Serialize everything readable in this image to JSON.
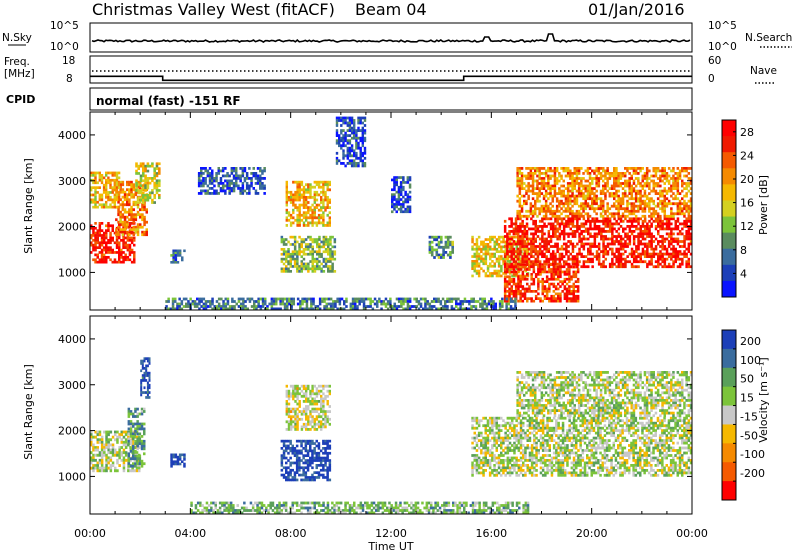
{
  "header": {
    "title": "Christmas Valley West (fitACF)",
    "beam": "Beam 04",
    "date": "01/Jan/2016"
  },
  "strip": {
    "nsky_label": "N.Sky",
    "nsky_ticks": [
      "10^5",
      "10^0"
    ],
    "nsearch_label": "N.Search",
    "nsearch_ticks": [
      "10^5",
      "10^0"
    ],
    "freq_label_1": "Freq.",
    "freq_label_2": "[MHz]",
    "freq_ticks": [
      "18",
      "8"
    ],
    "nave_label": "Nave",
    "nave_ticks": [
      "60",
      "0"
    ],
    "cpid_label": "CPID",
    "cpid_text": "normal (fast) -151 RF",
    "freq_steps": [
      {
        "from_hour": 0,
        "to_hour": 2.9,
        "mhz": 10.5
      },
      {
        "from_hour": 2.9,
        "to_hour": 14.9,
        "mhz": 9.0
      },
      {
        "from_hour": 14.9,
        "to_hour": 24,
        "mhz": 10.5
      }
    ]
  },
  "chart_data": [
    {
      "type": "heatmap",
      "name": "Power",
      "ylabel": "Slant Range [km]",
      "xlabel": "Time UT",
      "xlim_hours": [
        0,
        24
      ],
      "ylim_km": [
        180,
        4500
      ],
      "x_ticks": [
        "00:00",
        "04:00",
        "08:00",
        "12:00",
        "16:00",
        "20:00",
        "00:00"
      ],
      "y_ticks": [
        1000,
        2000,
        3000,
        4000
      ],
      "colorbar": {
        "label": "Power [dB]",
        "range": [
          0,
          30
        ],
        "ticks": [
          4,
          8,
          12,
          16,
          20,
          24,
          28
        ],
        "colors": [
          "#0a14ff",
          "#1c3fb8",
          "#3a6c9e",
          "#5a8c5e",
          "#7cc43a",
          "#d4d020",
          "#f5b800",
          "#f58a00",
          "#f55a00",
          "#f01a00",
          "#ff0000"
        ]
      },
      "regions": [
        {
          "h0": 0.0,
          "h1": 1.8,
          "km0": 1200,
          "km1": 2100,
          "level": 0.9
        },
        {
          "h0": 1.0,
          "h1": 2.3,
          "km0": 1800,
          "km1": 3000,
          "level": 0.7
        },
        {
          "h0": 1.8,
          "h1": 2.8,
          "km0": 2500,
          "km1": 3400,
          "level": 0.5
        },
        {
          "h0": 0.0,
          "h1": 1.2,
          "km0": 2400,
          "km1": 3200,
          "level": 0.6
        },
        {
          "h0": 3.2,
          "h1": 3.8,
          "km0": 1200,
          "km1": 1500,
          "level": 0.2
        },
        {
          "h0": 4.3,
          "h1": 7.0,
          "km0": 2700,
          "km1": 3300,
          "level": 0.15
        },
        {
          "h0": 7.8,
          "h1": 9.6,
          "km0": 2000,
          "km1": 3000,
          "level": 0.6
        },
        {
          "h0": 7.6,
          "h1": 9.8,
          "km0": 1000,
          "km1": 1800,
          "level": 0.4
        },
        {
          "h0": 9.8,
          "h1": 11.0,
          "km0": 3300,
          "km1": 4400,
          "level": 0.15
        },
        {
          "h0": 12.0,
          "h1": 12.8,
          "km0": 2300,
          "km1": 3100,
          "level": 0.15
        },
        {
          "h0": 13.5,
          "h1": 14.5,
          "km0": 1300,
          "km1": 1800,
          "level": 0.3
        },
        {
          "h0": 15.2,
          "h1": 17.5,
          "km0": 900,
          "km1": 1800,
          "level": 0.55
        },
        {
          "h0": 16.5,
          "h1": 19.5,
          "km0": 350,
          "km1": 1200,
          "level": 0.85
        },
        {
          "h0": 16.5,
          "h1": 24.0,
          "km0": 1100,
          "km1": 2200,
          "level": 0.9
        },
        {
          "h0": 17.0,
          "h1": 24.0,
          "km0": 2200,
          "km1": 3300,
          "level": 0.7
        },
        {
          "h0": 3.0,
          "h1": 17.0,
          "km0": 180,
          "km1": 450,
          "level": 0.25
        }
      ]
    },
    {
      "type": "heatmap",
      "name": "Velocity",
      "ylabel": "Slant Range [km]",
      "xlabel": "Time UT",
      "xlim_hours": [
        0,
        24
      ],
      "ylim_km": [
        180,
        4500
      ],
      "x_ticks": [
        "00:00",
        "04:00",
        "08:00",
        "12:00",
        "16:00",
        "20:00",
        "00:00"
      ],
      "y_ticks": [
        1000,
        2000,
        3000,
        4000
      ],
      "colorbar": {
        "label": "Velocity [m s⁻¹]",
        "tick_labels": [
          "200",
          "100",
          "50",
          "15",
          "-15",
          "-50",
          "-100",
          "-200"
        ],
        "colors": [
          "#1c3fb8",
          "#3a6c9e",
          "#5aa05a",
          "#7cc43a",
          "#c8c8c8",
          "#f5b800",
          "#f58a00",
          "#f55a00",
          "#ff0000"
        ]
      },
      "regions": [
        {
          "h0": 0.0,
          "h1": 2.0,
          "km0": 1100,
          "km1": 2000,
          "level": 0.45
        },
        {
          "h0": 1.5,
          "h1": 2.2,
          "km0": 1200,
          "km1": 2500,
          "level": 0.3
        },
        {
          "h0": 2.0,
          "h1": 2.4,
          "km0": 2700,
          "km1": 3600,
          "level": 0.05
        },
        {
          "h0": 3.2,
          "h1": 3.8,
          "km0": 1200,
          "km1": 1500,
          "level": 0.05
        },
        {
          "h0": 7.8,
          "h1": 9.6,
          "km0": 2000,
          "km1": 3000,
          "level": 0.5
        },
        {
          "h0": 7.6,
          "h1": 9.6,
          "km0": 900,
          "km1": 1800,
          "level": 0.05
        },
        {
          "h0": 15.2,
          "h1": 24.0,
          "km0": 1000,
          "km1": 2300,
          "level": 0.45
        },
        {
          "h0": 17.0,
          "h1": 24.0,
          "km0": 2300,
          "km1": 3300,
          "level": 0.45
        },
        {
          "h0": 4.0,
          "h1": 17.5,
          "km0": 180,
          "km1": 450,
          "level": 0.35
        }
      ]
    }
  ]
}
